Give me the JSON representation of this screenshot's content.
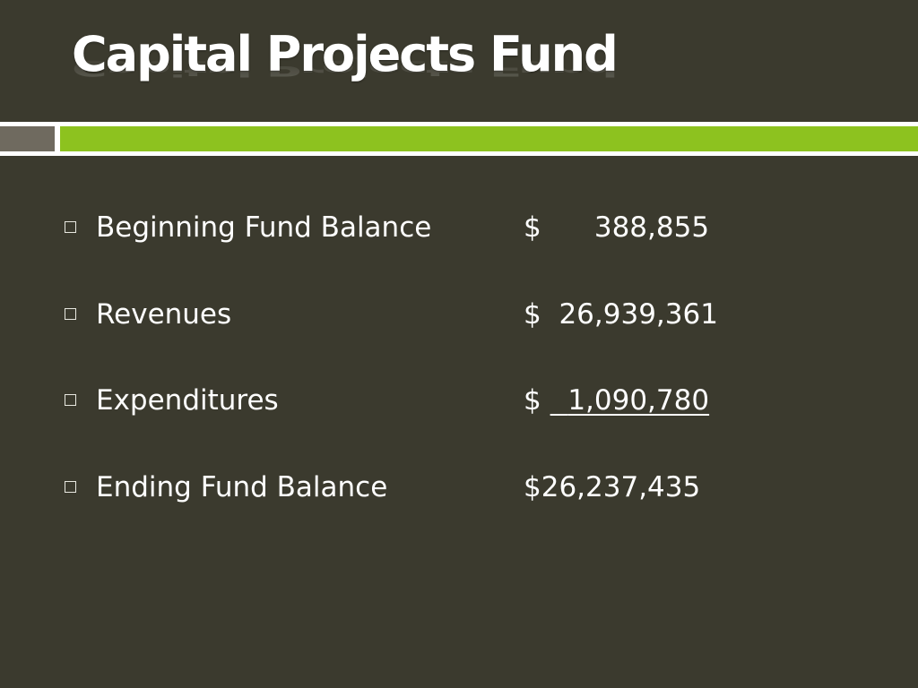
{
  "slide": {
    "title": "Capital Projects Fund"
  },
  "items": [
    {
      "label": "Beginning Fund Balance",
      "currency": "$",
      "amount": "388,855"
    },
    {
      "label": "Revenues",
      "currency": "$",
      "amount": "26,939,361"
    },
    {
      "label": "Expenditures",
      "currency": "$",
      "amount": "1,090,780"
    },
    {
      "label": "Ending Fund Balance",
      "currency": "$",
      "amount": "26,237,435"
    }
  ],
  "colors": {
    "background": "#3b3a2e",
    "accent_green": "#8dc21f",
    "accent_gray": "#6f6a5f",
    "text": "#ffffff"
  }
}
